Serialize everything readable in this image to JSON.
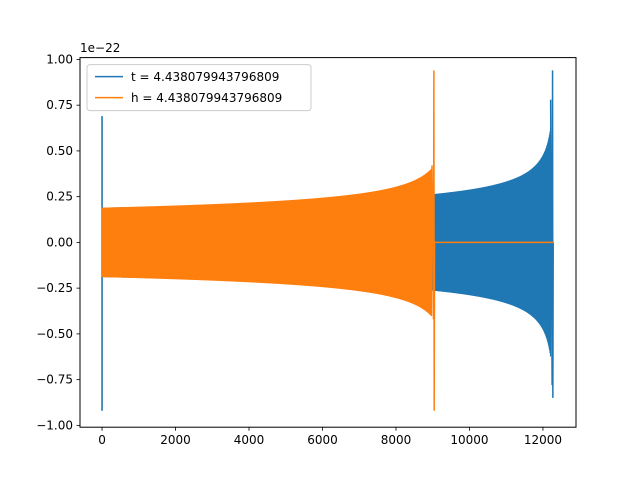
{
  "chart_data": {
    "type": "line",
    "title": "",
    "xlabel": "",
    "ylabel": "",
    "y_offset_text": "1e−22",
    "xlim": [
      -600,
      12900
    ],
    "ylim": [
      -1.01,
      1.01
    ],
    "x_ticks": [
      0,
      2000,
      4000,
      6000,
      8000,
      10000,
      12000
    ],
    "x_tick_labels": [
      "0",
      "2000",
      "4000",
      "6000",
      "8000",
      "10000",
      "12000"
    ],
    "y_ticks": [
      -1.0,
      -0.75,
      -0.5,
      -0.25,
      0.0,
      0.25,
      0.5,
      0.75,
      1.0
    ],
    "y_tick_labels": [
      "−1.00",
      "−0.75",
      "−0.50",
      "−0.25",
      "0.00",
      "0.25",
      "0.50",
      "0.75",
      "1.00"
    ],
    "grid": false,
    "legend_position": "upper-left",
    "series": [
      {
        "name": "t = 4.438079943796809",
        "color": "#1f77b4",
        "shape": "oscillating chirp",
        "x_start": 0,
        "x_end": 12300,
        "x_merger": 12270,
        "amplitude_start": 0.19,
        "amplitude_before_merger": 0.78,
        "peak_max": 0.94,
        "peak_min": -0.85,
        "startup_spike": {
          "x": 0,
          "max": 0.69,
          "min": -0.92
        }
      },
      {
        "name": "h = 4.438079943796809",
        "color": "#ff7f0e",
        "shape": "oscillating chirp then zero",
        "x_start": 0,
        "x_end": 12300,
        "x_merger": 9040,
        "amplitude_start": 0.19,
        "amplitude_before_merger": 0.42,
        "peak_max": 0.94,
        "peak_min": -0.92,
        "zero_after_merger": true
      }
    ]
  }
}
